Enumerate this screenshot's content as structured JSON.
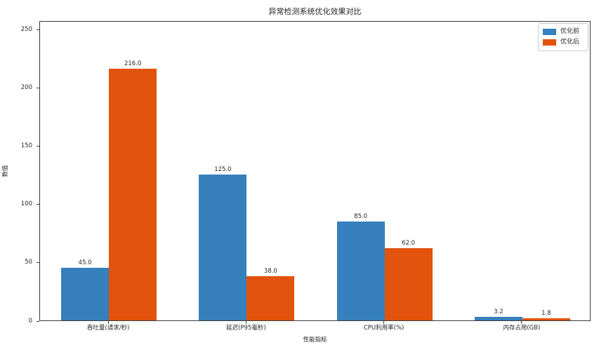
{
  "chart_data": {
    "type": "bar",
    "title": "异常检测系统优化效果对比",
    "xlabel": "性能指标",
    "ylabel": "数值",
    "categories": [
      "吞吐量(请求/秒)",
      "延迟(P95毫秒)",
      "CPU利用率(%)",
      "内存占用(GB)"
    ],
    "series": [
      {
        "name": "优化前",
        "color": "#3580bd",
        "values": [
          45.0,
          125.0,
          85.0,
          3.2
        ]
      },
      {
        "name": "优化后",
        "color": "#e2530e",
        "values": [
          216.0,
          38.0,
          62.0,
          1.8
        ]
      }
    ],
    "value_label_format": "one_decimal",
    "yticks": [
      0,
      50,
      100,
      150,
      200,
      250
    ],
    "ylim": [
      0,
      257
    ],
    "legend_position": "upper right",
    "grid": false,
    "colors": {
      "axis": "#3a3a3a",
      "text": "#262626",
      "background": "#ffffff",
      "legend_border": "#cccccc"
    }
  }
}
